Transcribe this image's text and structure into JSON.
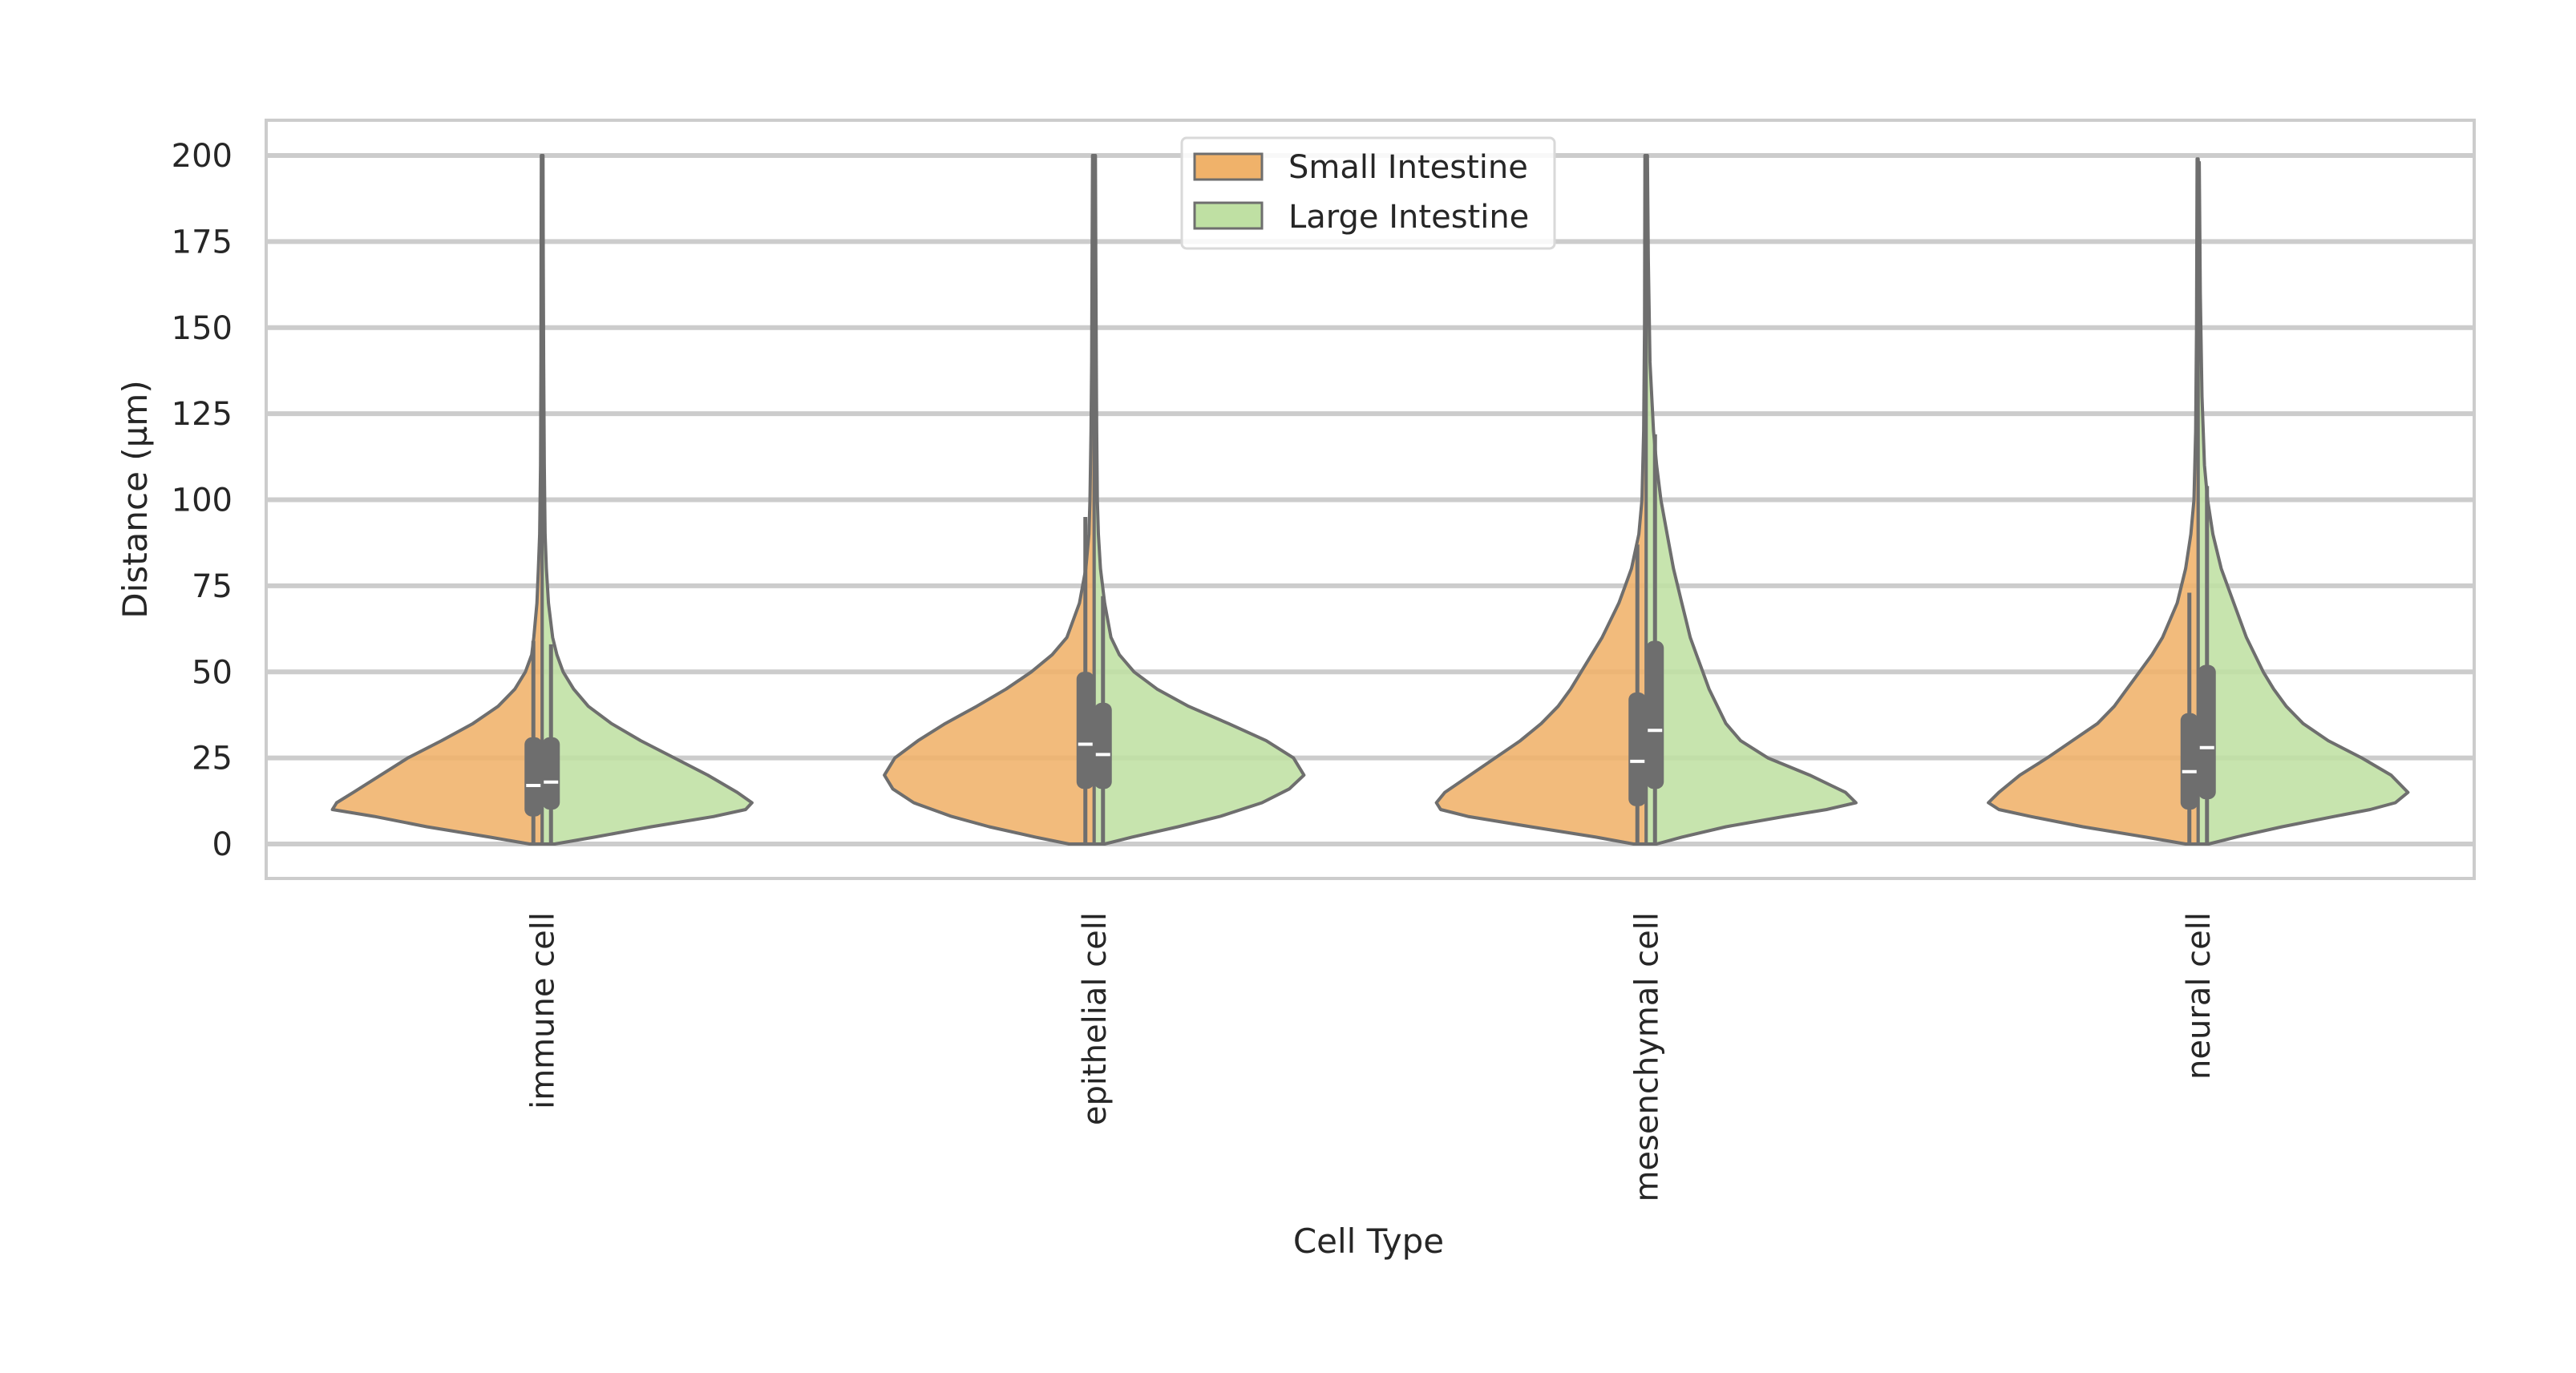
{
  "chart_data": {
    "type": "violin",
    "split": true,
    "title": "",
    "xlabel": "Cell Type",
    "ylabel": "Distance (µm)",
    "ylim": [
      -10,
      210
    ],
    "yticks": [
      0,
      25,
      50,
      75,
      100,
      125,
      150,
      175,
      200
    ],
    "grid": true,
    "legend_position": "top-center",
    "categories": [
      "immune cell",
      "epithelial cell",
      "mesenchymal cell",
      "neural cell"
    ],
    "series": [
      {
        "name": "Small Intestine",
        "color": "#f0b26a",
        "edge_color": "#6e6e6e",
        "stats": [
          {
            "min": 0,
            "q1": 8,
            "median": 17,
            "q3": 31,
            "whisker_high": 59,
            "max": 200
          },
          {
            "min": 0,
            "q1": 16,
            "median": 29,
            "q3": 50,
            "whisker_high": 95,
            "max": 200
          },
          {
            "min": 0,
            "q1": 11,
            "median": 24,
            "q3": 44,
            "whisker_high": 87,
            "max": 200
          },
          {
            "min": 0,
            "q1": 10,
            "median": 21,
            "q3": 38,
            "whisker_high": 73,
            "max": 199
          }
        ],
        "density": [
          [
            [
              0,
              0.06
            ],
            [
              2,
              0.25
            ],
            [
              5,
              0.55
            ],
            [
              8,
              0.8
            ],
            [
              10,
              1.0
            ],
            [
              12,
              0.98
            ],
            [
              15,
              0.9
            ],
            [
              20,
              0.77
            ],
            [
              25,
              0.64
            ],
            [
              30,
              0.48
            ],
            [
              35,
              0.33
            ],
            [
              40,
              0.21
            ],
            [
              45,
              0.13
            ],
            [
              50,
              0.08
            ],
            [
              55,
              0.05
            ],
            [
              60,
              0.04
            ],
            [
              70,
              0.025
            ],
            [
              80,
              0.018
            ],
            [
              90,
              0.012
            ],
            [
              110,
              0.008
            ],
            [
              140,
              0.006
            ],
            [
              170,
              0.005
            ],
            [
              200,
              0.004
            ]
          ],
          [
            [
              0,
              0.12
            ],
            [
              2,
              0.28
            ],
            [
              5,
              0.5
            ],
            [
              8,
              0.68
            ],
            [
              12,
              0.86
            ],
            [
              16,
              0.96
            ],
            [
              20,
              1.0
            ],
            [
              25,
              0.95
            ],
            [
              30,
              0.84
            ],
            [
              35,
              0.71
            ],
            [
              40,
              0.56
            ],
            [
              45,
              0.42
            ],
            [
              50,
              0.3
            ],
            [
              55,
              0.2
            ],
            [
              60,
              0.13
            ],
            [
              70,
              0.07
            ],
            [
              80,
              0.04
            ],
            [
              90,
              0.025
            ],
            [
              100,
              0.02
            ],
            [
              120,
              0.015
            ],
            [
              140,
              0.012
            ],
            [
              170,
              0.01
            ],
            [
              200,
              0.008
            ]
          ],
          [
            [
              0,
              0.06
            ],
            [
              2,
              0.24
            ],
            [
              5,
              0.55
            ],
            [
              8,
              0.85
            ],
            [
              10,
              0.98
            ],
            [
              12,
              1.0
            ],
            [
              15,
              0.96
            ],
            [
              20,
              0.84
            ],
            [
              25,
              0.72
            ],
            [
              30,
              0.6
            ],
            [
              35,
              0.5
            ],
            [
              40,
              0.42
            ],
            [
              45,
              0.36
            ],
            [
              50,
              0.31
            ],
            [
              55,
              0.26
            ],
            [
              60,
              0.21
            ],
            [
              65,
              0.17
            ],
            [
              70,
              0.13
            ],
            [
              75,
              0.1
            ],
            [
              80,
              0.07
            ],
            [
              90,
              0.035
            ],
            [
              100,
              0.02
            ],
            [
              120,
              0.012
            ],
            [
              150,
              0.008
            ],
            [
              200,
              0.006
            ]
          ],
          [
            [
              0,
              0.06
            ],
            [
              2,
              0.25
            ],
            [
              5,
              0.55
            ],
            [
              8,
              0.8
            ],
            [
              10,
              0.95
            ],
            [
              12,
              1.0
            ],
            [
              15,
              0.95
            ],
            [
              20,
              0.85
            ],
            [
              25,
              0.72
            ],
            [
              30,
              0.6
            ],
            [
              35,
              0.48
            ],
            [
              40,
              0.4
            ],
            [
              45,
              0.34
            ],
            [
              50,
              0.28
            ],
            [
              55,
              0.22
            ],
            [
              60,
              0.17
            ],
            [
              70,
              0.1
            ],
            [
              80,
              0.06
            ],
            [
              90,
              0.035
            ],
            [
              100,
              0.02
            ],
            [
              120,
              0.012
            ],
            [
              150,
              0.008
            ],
            [
              199,
              0.005
            ]
          ]
        ]
      },
      {
        "name": "Large Intestine",
        "color": "#bfe0a3",
        "edge_color": "#6e6e6e",
        "stats": [
          {
            "min": 0,
            "q1": 10,
            "median": 18,
            "q3": 31,
            "whisker_high": 58,
            "max": 200
          },
          {
            "min": 0,
            "q1": 16,
            "median": 26,
            "q3": 41,
            "whisker_high": 72,
            "max": 200
          },
          {
            "min": 0,
            "q1": 16,
            "median": 33,
            "q3": 59,
            "whisker_high": 119,
            "max": 200
          },
          {
            "min": 0,
            "q1": 13,
            "median": 28,
            "q3": 52,
            "whisker_high": 104,
            "max": 198
          }
        ],
        "density": [
          [
            [
              0,
              0.06
            ],
            [
              2,
              0.25
            ],
            [
              5,
              0.52
            ],
            [
              8,
              0.82
            ],
            [
              10,
              0.97
            ],
            [
              12,
              1.0
            ],
            [
              15,
              0.93
            ],
            [
              20,
              0.79
            ],
            [
              25,
              0.63
            ],
            [
              30,
              0.47
            ],
            [
              35,
              0.33
            ],
            [
              40,
              0.22
            ],
            [
              45,
              0.15
            ],
            [
              50,
              0.1
            ],
            [
              55,
              0.07
            ],
            [
              60,
              0.05
            ],
            [
              70,
              0.03
            ],
            [
              80,
              0.02
            ],
            [
              90,
              0.014
            ],
            [
              110,
              0.01
            ],
            [
              140,
              0.007
            ],
            [
              170,
              0.005
            ],
            [
              200,
              0.004
            ]
          ],
          [
            [
              0,
              0.05
            ],
            [
              2,
              0.18
            ],
            [
              5,
              0.4
            ],
            [
              8,
              0.6
            ],
            [
              12,
              0.8
            ],
            [
              16,
              0.93
            ],
            [
              20,
              1.0
            ],
            [
              25,
              0.95
            ],
            [
              30,
              0.82
            ],
            [
              35,
              0.64
            ],
            [
              40,
              0.45
            ],
            [
              45,
              0.3
            ],
            [
              50,
              0.19
            ],
            [
              55,
              0.12
            ],
            [
              60,
              0.08
            ],
            [
              70,
              0.05
            ],
            [
              80,
              0.03
            ],
            [
              90,
              0.02
            ],
            [
              100,
              0.015
            ],
            [
              120,
              0.012
            ],
            [
              140,
              0.01
            ],
            [
              170,
              0.008
            ],
            [
              200,
              0.006
            ]
          ],
          [
            [
              0,
              0.05
            ],
            [
              2,
              0.17
            ],
            [
              5,
              0.38
            ],
            [
              8,
              0.66
            ],
            [
              10,
              0.86
            ],
            [
              12,
              1.0
            ],
            [
              15,
              0.95
            ],
            [
              20,
              0.78
            ],
            [
              25,
              0.58
            ],
            [
              30,
              0.45
            ],
            [
              35,
              0.38
            ],
            [
              40,
              0.34
            ],
            [
              45,
              0.3
            ],
            [
              50,
              0.27
            ],
            [
              55,
              0.24
            ],
            [
              60,
              0.21
            ],
            [
              65,
              0.19
            ],
            [
              70,
              0.17
            ],
            [
              75,
              0.15
            ],
            [
              80,
              0.13
            ],
            [
              90,
              0.1
            ],
            [
              100,
              0.07
            ],
            [
              110,
              0.05
            ],
            [
              120,
              0.035
            ],
            [
              140,
              0.018
            ],
            [
              170,
              0.01
            ],
            [
              200,
              0.006
            ]
          ],
          [
            [
              0,
              0.05
            ],
            [
              2,
              0.18
            ],
            [
              5,
              0.4
            ],
            [
              8,
              0.65
            ],
            [
              10,
              0.82
            ],
            [
              12,
              0.94
            ],
            [
              15,
              1.0
            ],
            [
              20,
              0.92
            ],
            [
              25,
              0.78
            ],
            [
              30,
              0.62
            ],
            [
              35,
              0.5
            ],
            [
              40,
              0.42
            ],
            [
              45,
              0.36
            ],
            [
              50,
              0.31
            ],
            [
              55,
              0.27
            ],
            [
              60,
              0.23
            ],
            [
              70,
              0.17
            ],
            [
              80,
              0.11
            ],
            [
              90,
              0.07
            ],
            [
              100,
              0.045
            ],
            [
              110,
              0.03
            ],
            [
              130,
              0.018
            ],
            [
              160,
              0.01
            ],
            [
              198,
              0.005
            ]
          ]
        ]
      }
    ]
  }
}
